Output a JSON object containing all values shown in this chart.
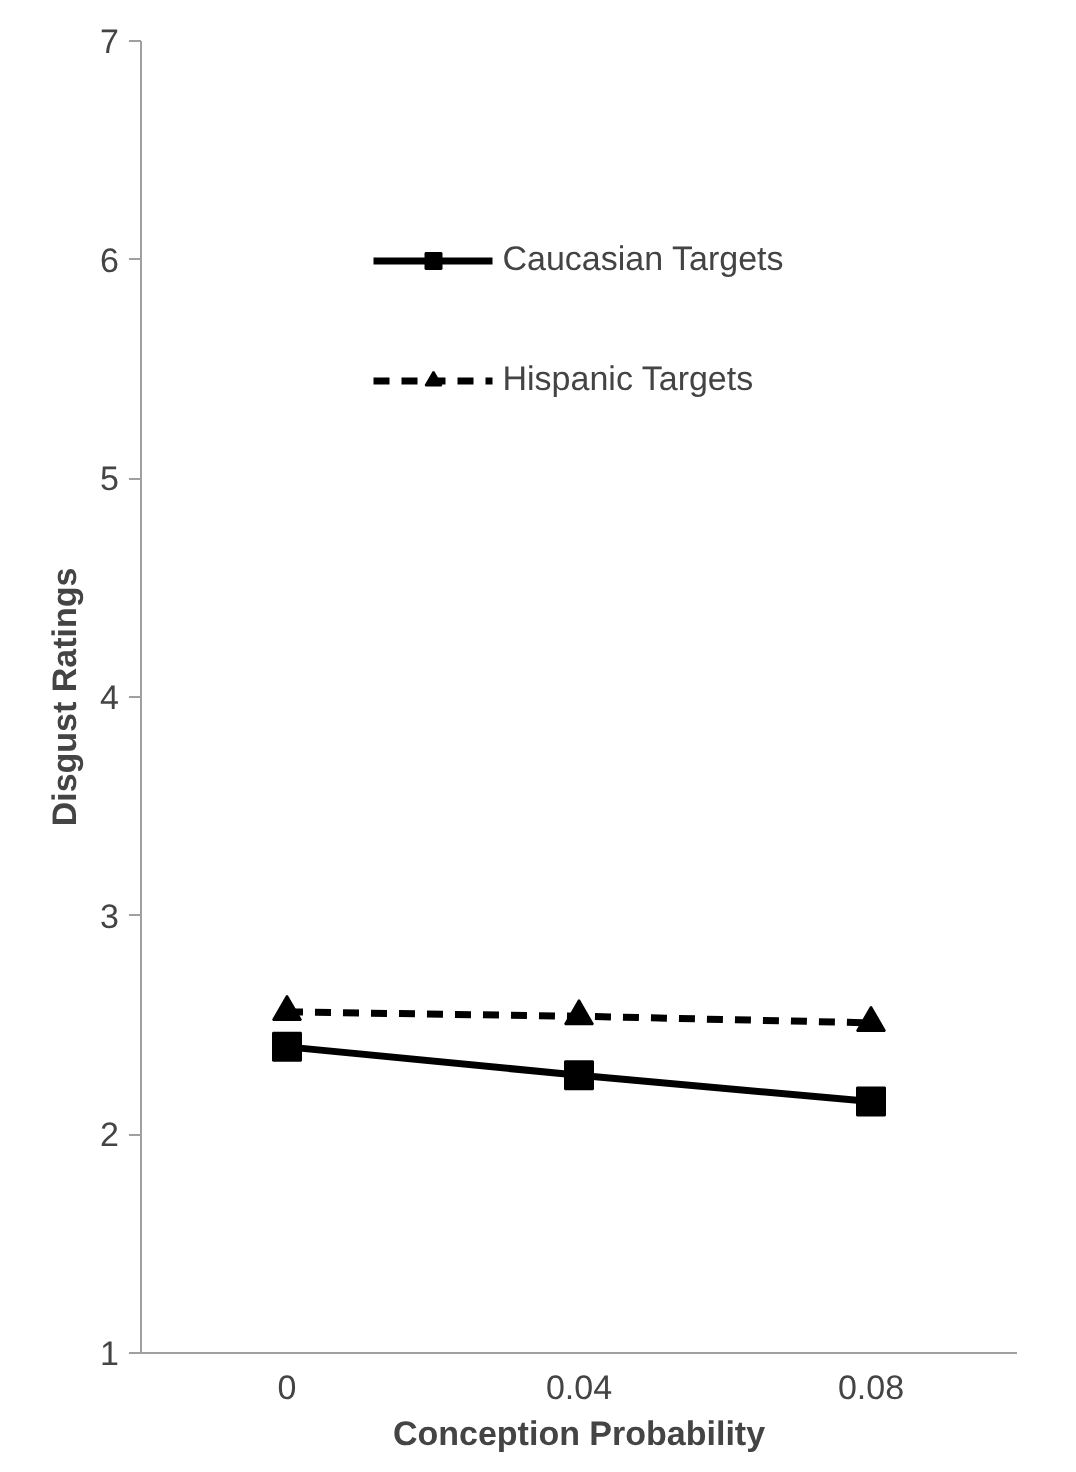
{
  "chart_data": {
    "type": "line",
    "xlabel": "Conception Probability",
    "ylabel": "Disgust Ratings",
    "categories": [
      "0",
      "0.04",
      "0.08"
    ],
    "series": [
      {
        "name": "Caucasian Targets",
        "color": "#000000",
        "marker": "square",
        "line_style": "solid",
        "values": [
          2.4,
          2.27,
          2.15
        ]
      },
      {
        "name": "Hispanic Targets",
        "color": "#000000",
        "marker": "triangle",
        "line_style": "dashed",
        "values": [
          2.56,
          2.54,
          2.51
        ]
      }
    ],
    "ylim": [
      1,
      7
    ],
    "yticks": [
      1,
      2,
      3,
      4,
      5,
      6,
      7
    ],
    "grid": false,
    "legend": "top"
  }
}
